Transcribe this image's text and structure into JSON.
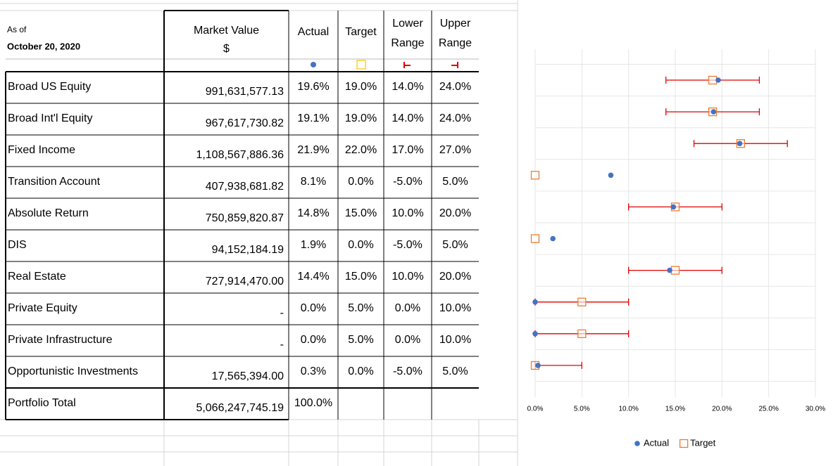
{
  "header": {
    "as_of": "As of",
    "date": "October 20, 2020"
  },
  "table": {
    "columns": [
      [
        "Market Value",
        "$"
      ],
      [
        "Actual"
      ],
      [
        "Target"
      ],
      [
        "Lower",
        "Range"
      ],
      [
        "Upper",
        "Range"
      ]
    ],
    "rows": [
      [
        "Broad US Equity",
        "991,631,577.13",
        "19.6%",
        "19.0%",
        "14.0%",
        "24.0%"
      ],
      [
        "Broad Int'l Equity",
        "967,617,730.82",
        "19.1%",
        "19.0%",
        "14.0%",
        "24.0%"
      ],
      [
        "Fixed Income",
        "1,108,567,886.36",
        "21.9%",
        "22.0%",
        "17.0%",
        "27.0%"
      ],
      [
        "Transition Account",
        "407,938,681.82",
        "8.1%",
        "0.0%",
        "-5.0%",
        "5.0%"
      ],
      [
        "Absolute Return",
        "750,859,820.87",
        "14.8%",
        "15.0%",
        "10.0%",
        "20.0%"
      ],
      [
        "DIS",
        "94,152,184.19",
        "1.9%",
        "0.0%",
        "-5.0%",
        "5.0%"
      ],
      [
        "Real Estate",
        "727,914,470.00",
        "14.4%",
        "15.0%",
        "10.0%",
        "20.0%"
      ],
      [
        "Private Equity",
        "-",
        "0.0%",
        "5.0%",
        "0.0%",
        "10.0%"
      ],
      [
        "Private Infrastructure",
        "-",
        "0.0%",
        "5.0%",
        "0.0%",
        "10.0%"
      ],
      [
        "Opportunistic Investments",
        "17,565,394.00",
        "0.3%",
        "0.0%",
        "-5.0%",
        "5.0%"
      ]
    ],
    "total": [
      "Portfolio Total",
      "5,066,247,745.19",
      "100.0%"
    ]
  },
  "chart_data": {
    "type": "scatter",
    "xlim": [
      0,
      30
    ],
    "xticks": [
      {
        "value": 0,
        "label": "0.0%"
      },
      {
        "value": 5,
        "label": "5.0%"
      },
      {
        "value": 10,
        "label": "10.0%"
      },
      {
        "value": 15,
        "label": "15.0%"
      },
      {
        "value": 20,
        "label": "20.0%"
      },
      {
        "value": 25,
        "label": "25.0%"
      },
      {
        "value": 30,
        "label": "30.0%"
      }
    ],
    "grid": true,
    "legend": "bottom",
    "series": [
      {
        "name": "Actual",
        "color": "#4472c4",
        "values": [
          19.6,
          19.1,
          21.9,
          8.1,
          14.8,
          1.9,
          14.4,
          0,
          0,
          0.3
        ]
      },
      {
        "name": "Target",
        "color": "#ed7d31",
        "values": [
          19,
          19,
          22,
          0,
          15,
          0,
          15,
          5,
          5,
          0
        ]
      }
    ],
    "ranges": {
      "color": "#e00000",
      "lower": [
        14,
        14,
        17,
        null,
        10,
        null,
        10,
        0,
        0,
        -5
      ],
      "upper": [
        24,
        24,
        27,
        null,
        20,
        null,
        20,
        10,
        10,
        5
      ]
    }
  }
}
